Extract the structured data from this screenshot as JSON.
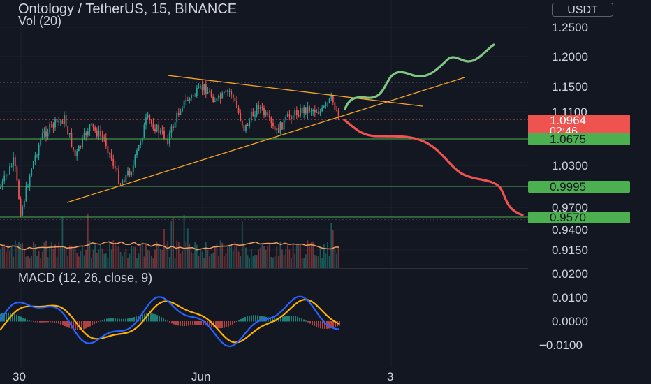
{
  "header": {
    "title": "Ontology / TetherUS, 15, BINANCE",
    "vol_label": "Vol (20)",
    "macd_label": "MACD (12, 26, close, 9)",
    "currency_button": "USDT"
  },
  "colors": {
    "background": "#131722",
    "up": "#26a69a",
    "down": "#ef5350",
    "level": "#4caf50",
    "trendline": "#f5a623",
    "macd": "#2962ff",
    "signal": "#ffb300",
    "projection_up": "#81c784",
    "projection_down": "#ef5350"
  },
  "price_axis": {
    "ticks": [
      "1.2500",
      "1.2000",
      "1.1500",
      "1.1100",
      "1.0300",
      "0.9700",
      "0.9400",
      "0.9150"
    ],
    "current_price": "1.0964",
    "countdown": "02:46",
    "levels": [
      "1.0675",
      "0.9995",
      "0.9570"
    ]
  },
  "macd_axis": {
    "ticks": [
      "0.0200",
      "0.0100",
      "0.0000",
      "−0.0100"
    ]
  },
  "time_axis": {
    "labels": [
      "30",
      "Jun",
      "3"
    ]
  }
}
